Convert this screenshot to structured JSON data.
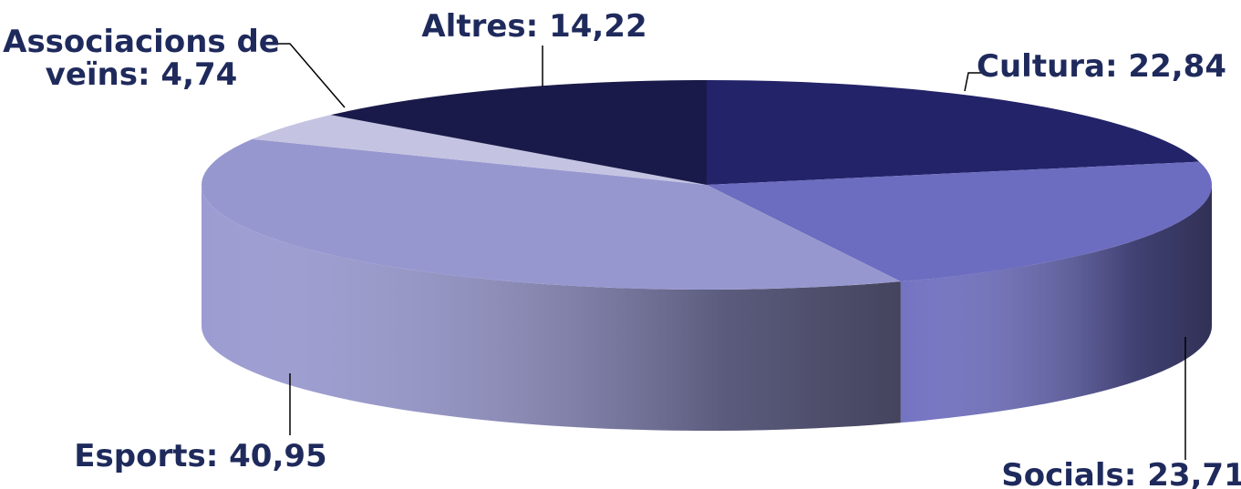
{
  "chart_data": {
    "type": "pie3d",
    "categories": [
      "Cultura",
      "Socials",
      "Esports",
      "Associacions de veïns",
      "Altres"
    ],
    "values": [
      22.84,
      23.71,
      40.95,
      4.74,
      14.22
    ],
    "value_labels": [
      "Cultura: 22,84",
      "Socials: 23,71",
      "Esports: 40,95",
      "Associacions de veïns: 4,74",
      "Altres: 14,22"
    ],
    "colors": [
      "#232369",
      "#6c6cc0",
      "#9797d0",
      "#c4c4e2",
      "#1a1a4a"
    ]
  }
}
